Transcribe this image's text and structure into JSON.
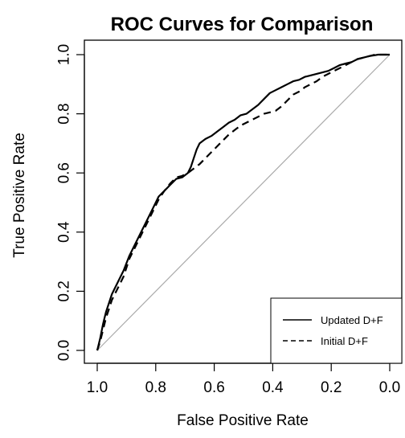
{
  "chart_data": {
    "type": "line",
    "title": "ROC Curves for Comparison",
    "xlabel": "False Positive Rate",
    "ylabel": "True Positive Rate",
    "xlim": [
      1.0,
      0.0
    ],
    "ylim": [
      0.0,
      1.0
    ],
    "x_reversed": true,
    "x_ticks": [
      "1.0",
      "0.8",
      "0.6",
      "0.4",
      "0.2",
      "0.0"
    ],
    "x_tick_values": [
      1.0,
      0.8,
      0.6,
      0.4,
      0.2,
      0.0
    ],
    "y_ticks": [
      "0.0",
      "0.2",
      "0.4",
      "0.6",
      "0.8",
      "1.0"
    ],
    "y_tick_values": [
      0.0,
      0.2,
      0.4,
      0.6,
      0.8,
      1.0
    ],
    "grid": false,
    "legend_position": "bottom-right",
    "reference_line": {
      "color": "#aaaaaa",
      "from": [
        1.0,
        0.0
      ],
      "to": [
        0.0,
        1.0
      ]
    },
    "series": [
      {
        "name": "Updated D+F",
        "style": "solid",
        "color": "#000000",
        "x": [
          1.0,
          0.99,
          0.98,
          0.97,
          0.96,
          0.95,
          0.93,
          0.91,
          0.89,
          0.87,
          0.85,
          0.83,
          0.81,
          0.79,
          0.77,
          0.75,
          0.73,
          0.71,
          0.69,
          0.68,
          0.67,
          0.66,
          0.65,
          0.63,
          0.61,
          0.59,
          0.57,
          0.55,
          0.53,
          0.51,
          0.49,
          0.47,
          0.45,
          0.43,
          0.41,
          0.39,
          0.37,
          0.35,
          0.33,
          0.31,
          0.29,
          0.27,
          0.25,
          0.23,
          0.21,
          0.19,
          0.17,
          0.15,
          0.13,
          0.11,
          0.09,
          0.07,
          0.05,
          0.04,
          0.03,
          0.02,
          0.0
        ],
        "y": [
          0.0,
          0.04,
          0.09,
          0.13,
          0.16,
          0.19,
          0.23,
          0.27,
          0.32,
          0.36,
          0.4,
          0.44,
          0.48,
          0.52,
          0.54,
          0.56,
          0.58,
          0.585,
          0.6,
          0.62,
          0.65,
          0.68,
          0.7,
          0.715,
          0.725,
          0.74,
          0.755,
          0.77,
          0.78,
          0.795,
          0.8,
          0.815,
          0.83,
          0.85,
          0.87,
          0.88,
          0.89,
          0.9,
          0.91,
          0.915,
          0.925,
          0.93,
          0.935,
          0.94,
          0.945,
          0.955,
          0.965,
          0.97,
          0.975,
          0.985,
          0.99,
          0.995,
          0.998,
          1.0,
          1.0,
          1.0,
          1.0
        ]
      },
      {
        "name": "Initial D+F",
        "style": "dashed",
        "color": "#000000",
        "x": [
          1.0,
          0.99,
          0.98,
          0.97,
          0.96,
          0.95,
          0.93,
          0.91,
          0.89,
          0.87,
          0.85,
          0.83,
          0.81,
          0.79,
          0.77,
          0.75,
          0.73,
          0.71,
          0.69,
          0.67,
          0.65,
          0.63,
          0.61,
          0.59,
          0.57,
          0.55,
          0.53,
          0.51,
          0.49,
          0.47,
          0.45,
          0.43,
          0.41,
          0.39,
          0.37,
          0.35,
          0.33,
          0.31,
          0.29,
          0.27,
          0.25,
          0.23,
          0.21,
          0.19,
          0.17,
          0.15,
          0.13,
          0.11,
          0.09,
          0.07,
          0.05,
          0.03,
          0.0
        ],
        "y": [
          0.0,
          0.03,
          0.07,
          0.11,
          0.14,
          0.17,
          0.21,
          0.25,
          0.31,
          0.35,
          0.39,
          0.43,
          0.47,
          0.51,
          0.54,
          0.565,
          0.585,
          0.59,
          0.6,
          0.615,
          0.63,
          0.65,
          0.67,
          0.69,
          0.71,
          0.73,
          0.745,
          0.76,
          0.77,
          0.78,
          0.79,
          0.8,
          0.805,
          0.81,
          0.825,
          0.845,
          0.865,
          0.875,
          0.89,
          0.9,
          0.91,
          0.925,
          0.935,
          0.945,
          0.955,
          0.965,
          0.975,
          0.985,
          0.99,
          0.995,
          1.0,
          1.0,
          1.0
        ]
      }
    ]
  }
}
